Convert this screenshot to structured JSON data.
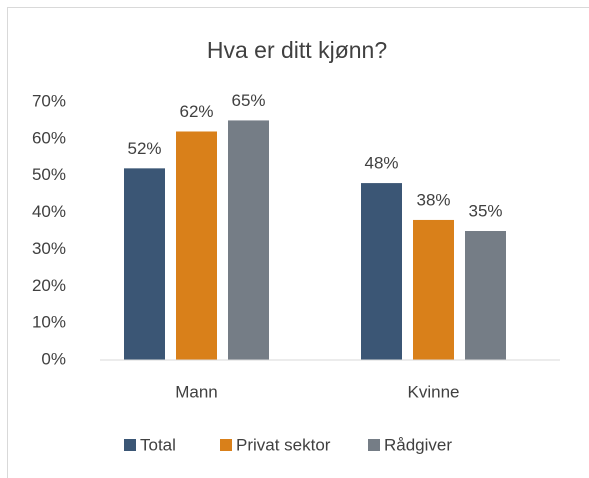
{
  "chart_data": {
    "type": "bar",
    "title": "Hva er ditt kjønn?",
    "categories": [
      "Mann",
      "Kvinne"
    ],
    "series": [
      {
        "name": "Total",
        "color": "#3b5675",
        "values": [
          52,
          48
        ],
        "value_labels": [
          "52%",
          "48%"
        ]
      },
      {
        "name": "Privat sektor",
        "color": "#d9801a",
        "values": [
          62,
          38
        ],
        "value_labels": [
          "62%",
          "38%"
        ]
      },
      {
        "name": "Rådgiver",
        "color": "#757d86",
        "values": [
          65,
          35
        ],
        "value_labels": [
          "65%",
          "35%"
        ]
      }
    ],
    "ylim": [
      0,
      70
    ],
    "yticks": [
      {
        "value": 0,
        "label": "0%"
      },
      {
        "value": 10,
        "label": "10%"
      },
      {
        "value": 20,
        "label": "20%"
      },
      {
        "value": 30,
        "label": "30%"
      },
      {
        "value": 40,
        "label": "40%"
      },
      {
        "value": 50,
        "label": "50%"
      },
      {
        "value": 60,
        "label": "60%"
      },
      {
        "value": 70,
        "label": "70%"
      }
    ],
    "grid": false,
    "legend": "bottom"
  }
}
